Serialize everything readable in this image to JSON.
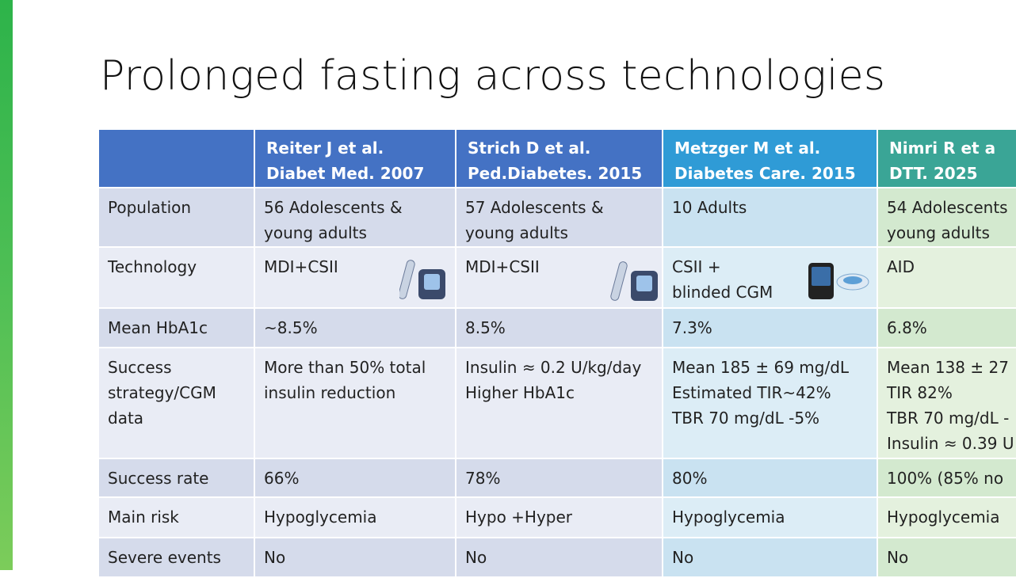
{
  "title": "Prolonged fasting across technologies",
  "table": {
    "columns": [
      [
        "Reiter J et al.",
        "Diabet Med. 2007"
      ],
      [
        "Strich D et al.",
        "Ped.Diabetes. 2015"
      ],
      [
        "Metzger M et al.",
        "Diabetes Care. 2015"
      ],
      [
        "Nimri R et a",
        "DTT. 2025"
      ]
    ],
    "rows": [
      {
        "label": [
          "Population"
        ],
        "cells": [
          [
            "56 Adolescents &",
            "young adults"
          ],
          [
            "57 Adolescents &",
            "young adults"
          ],
          [
            "10 Adults"
          ],
          [
            "54 Adolescents",
            "young adults"
          ]
        ]
      },
      {
        "label": [
          "Technology"
        ],
        "cells": [
          [
            "MDI+CSII"
          ],
          [
            "MDI+CSII"
          ],
          [
            "CSII +",
            "blinded CGM"
          ],
          [
            "AID"
          ]
        ]
      },
      {
        "label": [
          "Mean HbA1c"
        ],
        "cells": [
          [
            "~8.5%"
          ],
          [
            "8.5%"
          ],
          [
            "7.3%"
          ],
          [
            "6.8%"
          ]
        ]
      },
      {
        "label": [
          "Success",
          "strategy/CGM",
          "data"
        ],
        "cells": [
          [
            "More than 50% total",
            "insulin reduction"
          ],
          [
            "Insulin ≈ 0.2 U/kg/day",
            "Higher HbA1c"
          ],
          [
            "Mean 185 ± 69 mg/dL",
            "Estimated TIR~42%",
            "TBR 70 mg/dL -5%"
          ],
          [
            "Mean 138 ± 27",
            "TIR 82%",
            "TBR 70 mg/dL -",
            "Insulin ≈ 0.39 U"
          ]
        ]
      },
      {
        "label": [
          "Success rate"
        ],
        "cells": [
          [
            "66%"
          ],
          [
            "78%"
          ],
          [
            "80%"
          ],
          [
            "100% (85% no"
          ]
        ]
      },
      {
        "label": [
          "Main risk"
        ],
        "cells": [
          [
            "Hypoglycemia"
          ],
          [
            "Hypo +Hyper"
          ],
          [
            "Hypoglycemia"
          ],
          [
            "Hypoglycemia"
          ]
        ]
      },
      {
        "label": [
          "Severe events"
        ],
        "cells": [
          [
            "No"
          ],
          [
            "No"
          ],
          [
            "No"
          ],
          [
            "No"
          ]
        ]
      }
    ]
  }
}
